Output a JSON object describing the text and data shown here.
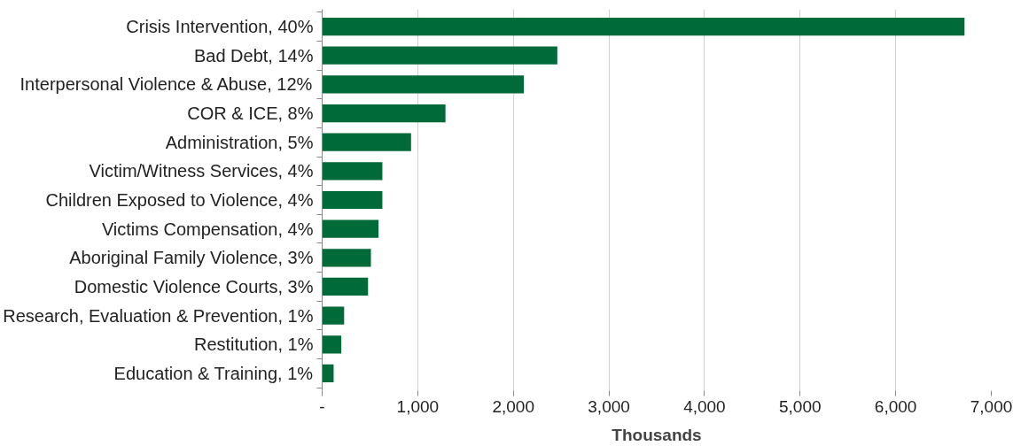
{
  "chart_data": {
    "type": "bar",
    "orientation": "horizontal",
    "xlabel": "Thousands",
    "categories": [
      "Crisis Intervention, 40%",
      "Bad Debt, 14%",
      "Interpersonal Violence & Abuse, 12%",
      "COR & ICE, 8%",
      "Administration, 5%",
      "Victim/Witness Services, 4%",
      "Children Exposed to Violence, 4%",
      "Victims Compensation, 4%",
      "Aboriginal Family Violence, 3%",
      "Domestic Violence Courts, 3%",
      "Research, Evaluation & Prevention, 1%",
      "Restitution, 1%",
      "Education & Training, 1%"
    ],
    "values": [
      6720,
      2460,
      2110,
      1290,
      930,
      630,
      630,
      590,
      510,
      480,
      230,
      200,
      120
    ],
    "color": "#006a38",
    "xlim": [
      0,
      7000
    ],
    "xticks": [
      {
        "value": 0,
        "label": "-"
      },
      {
        "value": 1000,
        "label": "1,000"
      },
      {
        "value": 2000,
        "label": "2,000"
      },
      {
        "value": 3000,
        "label": "3,000"
      },
      {
        "value": 4000,
        "label": "4,000"
      },
      {
        "value": 5000,
        "label": "5,000"
      },
      {
        "value": 6000,
        "label": "6,000"
      },
      {
        "value": 7000,
        "label": "7,000"
      }
    ],
    "grid": "x"
  }
}
